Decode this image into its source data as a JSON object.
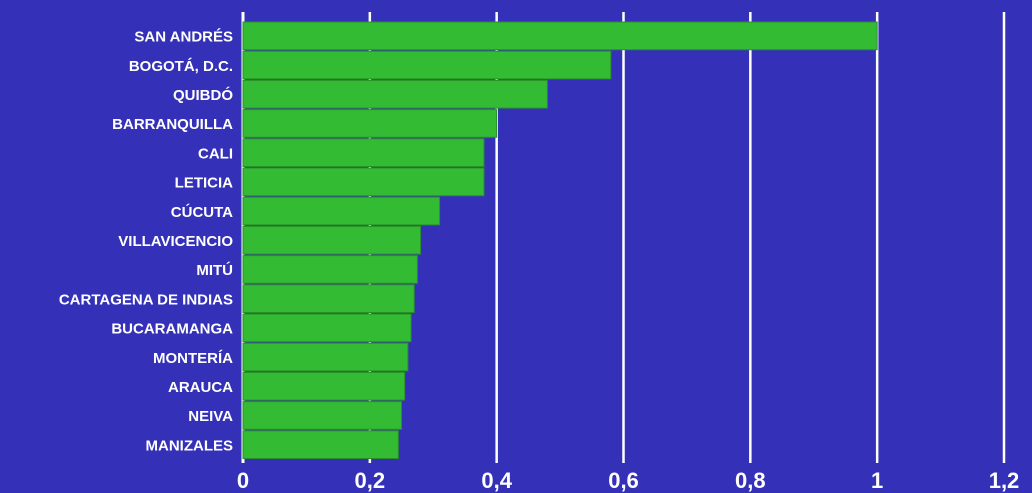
{
  "chart_data": {
    "type": "bar",
    "orientation": "horizontal",
    "title": "",
    "xlabel": "",
    "ylabel": "",
    "categories": [
      "SAN ANDRÉS",
      "BOGOTÁ, D.C.",
      "QUIBDÓ",
      "BARRANQUILLA",
      "CALI",
      "LETICIA",
      "CÚCUTA",
      "VILLAVICENCIO",
      "MITÚ",
      "CARTAGENA DE INDIAS",
      "BUCARAMANGA",
      "MONTERÍA",
      "ARAUCA",
      "NEIVA",
      "MANIZALES"
    ],
    "values": [
      1.0,
      0.58,
      0.48,
      0.4,
      0.38,
      0.38,
      0.31,
      0.28,
      0.275,
      0.27,
      0.265,
      0.26,
      0.255,
      0.25,
      0.245
    ],
    "xlim": [
      0,
      1.2
    ],
    "x_ticks": [
      "0",
      "0,2",
      "0,4",
      "0,6",
      "0,8",
      "1",
      "1,2"
    ],
    "x_tick_values": [
      0,
      0.2,
      0.4,
      0.6,
      0.8,
      1.0,
      1.2
    ],
    "grid": "vertical",
    "legend": "none",
    "colors": {
      "background": "#3431b8",
      "bar": "#33bb33",
      "bar_edge": "#2a8f2a",
      "grid": "#ffffff",
      "text": "#ffffff"
    }
  }
}
